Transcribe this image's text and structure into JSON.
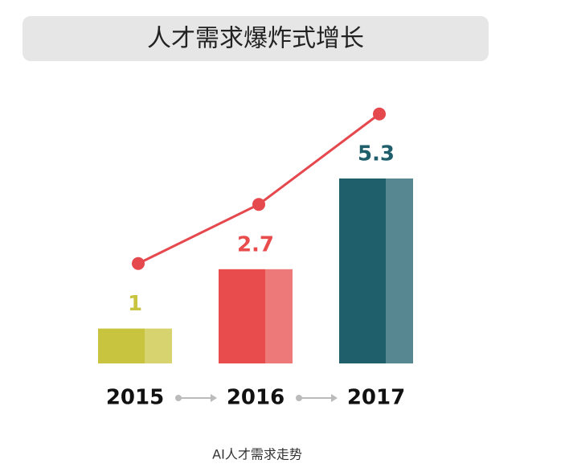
{
  "chart_data": {
    "type": "bar",
    "title": "人才需求爆炸式增长",
    "caption": "AI人才需求走势",
    "categories": [
      "2015",
      "2016",
      "2017"
    ],
    "values": [
      1,
      2.7,
      5.3
    ],
    "colors": [
      "#c9c43f",
      "#e84c4c",
      "#1f5f6b"
    ],
    "line_color": "#e5484d"
  }
}
